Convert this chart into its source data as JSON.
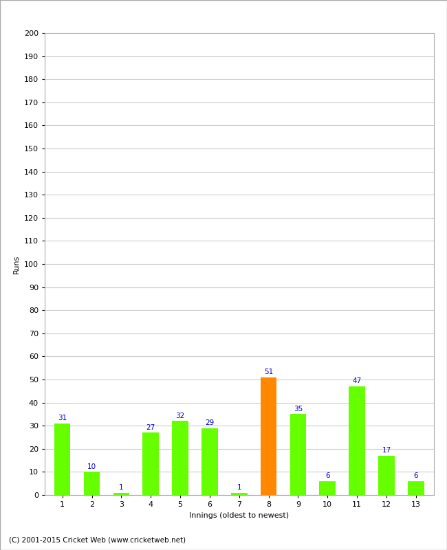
{
  "xlabel": "Innings (oldest to newest)",
  "ylabel": "Runs",
  "categories": [
    1,
    2,
    3,
    4,
    5,
    6,
    7,
    8,
    9,
    10,
    11,
    12,
    13
  ],
  "values": [
    31,
    10,
    1,
    27,
    32,
    29,
    1,
    51,
    35,
    6,
    47,
    17,
    6
  ],
  "bar_colors": [
    "#66ff00",
    "#66ff00",
    "#66ff00",
    "#66ff00",
    "#66ff00",
    "#66ff00",
    "#66ff00",
    "#ff8800",
    "#66ff00",
    "#66ff00",
    "#66ff00",
    "#66ff00",
    "#66ff00"
  ],
  "label_color": "#0000cc",
  "ylim": [
    0,
    200
  ],
  "yticks": [
    0,
    10,
    20,
    30,
    40,
    50,
    60,
    70,
    80,
    90,
    100,
    110,
    120,
    130,
    140,
    150,
    160,
    170,
    180,
    190,
    200
  ],
  "background_color": "#ffffff",
  "grid_color": "#cccccc",
  "footer": "(C) 2001-2015 Cricket Web (www.cricketweb.net)",
  "border_color": "#aaaaaa",
  "ylabel_fontsize": 8,
  "xlabel_fontsize": 8,
  "tick_fontsize": 8,
  "label_fontsize": 7.5,
  "bar_width": 0.55
}
